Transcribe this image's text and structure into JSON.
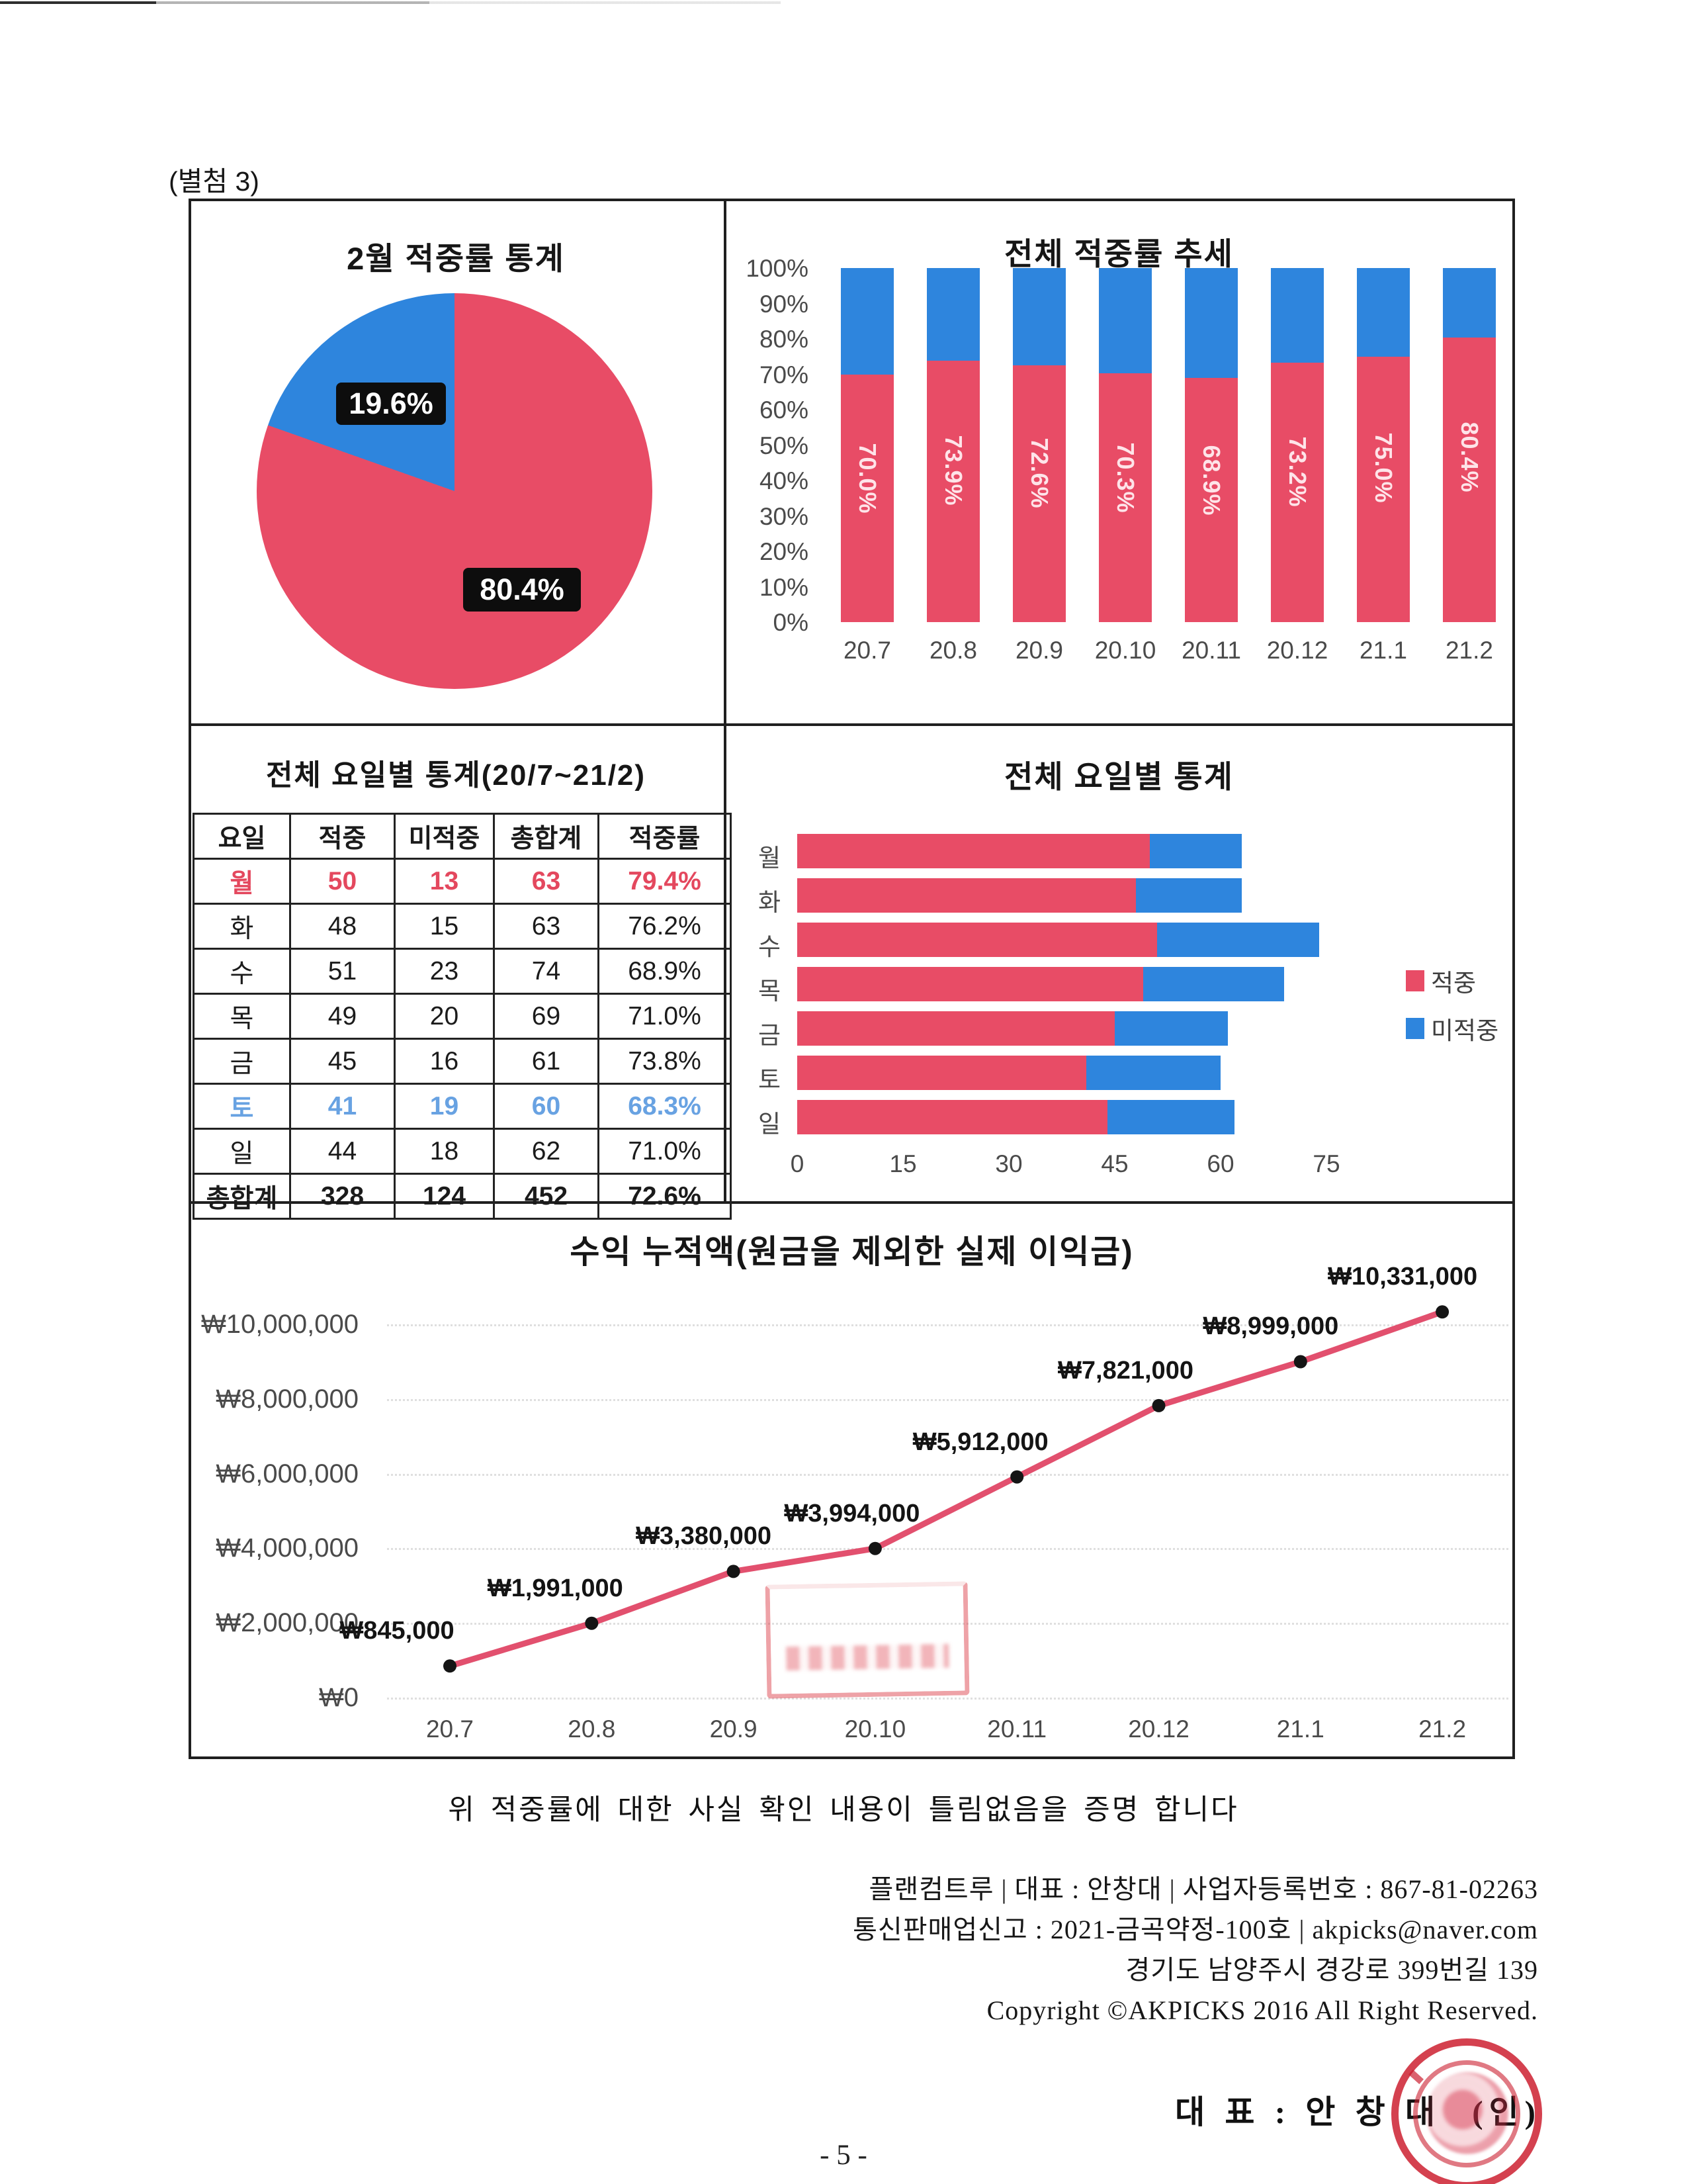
{
  "page": {
    "attachment_label": "(별첨 3)",
    "certify_text": "위 적중률에 대한 사실 확인 내용이 틀림없음을 증명 합니다",
    "footer_lines": [
      "플랜컴트루 | 대표 : 안창대 | 사업자등록번호 : 867-81-02263",
      "통신판매업신고 : 2021-금곡약정-100호 | akpicks@naver.com",
      "경기도 남양주시 경강로 399번길 139",
      "Copyright ©AKPICKS 2016 All Right Reserved."
    ],
    "signature_name": "대 표 : 안 창 대",
    "signature_seal_suffix": "(인)",
    "page_number": "- 5 -"
  },
  "colors": {
    "hit_red": "#e84c66",
    "miss_blue": "#2e85dd",
    "line_pink": "#e2506e",
    "marker_black": "#151515",
    "mon_red": "#e4485e",
    "sat_blue": "#68a2e2",
    "stamp_red": "#cc2030"
  },
  "chart_data": [
    {
      "id": "pie",
      "type": "pie",
      "title": "2월 적중률 통계",
      "slices": [
        {
          "name": "적중",
          "label": "80.4%",
          "value": 80.4,
          "color": "#e84c66"
        },
        {
          "name": "미적중",
          "label": "19.6%",
          "value": 19.6,
          "color": "#2e85dd"
        }
      ]
    },
    {
      "id": "trend",
      "type": "bar",
      "title": "전체 적중률 추세",
      "stacked": true,
      "categories": [
        "20.7",
        "20.8",
        "20.9",
        "20.10",
        "20.11",
        "20.12",
        "21.1",
        "21.2"
      ],
      "series": [
        {
          "name": "적중률",
          "values": [
            70.0,
            73.9,
            72.6,
            70.3,
            68.9,
            73.2,
            75.0,
            80.4
          ]
        },
        {
          "name": "미적중률",
          "values": [
            30.0,
            26.1,
            27.4,
            29.7,
            31.1,
            26.8,
            25.0,
            19.6
          ]
        }
      ],
      "bar_labels": [
        "70.0%",
        "73.9%",
        "72.6%",
        "70.3%",
        "68.9%",
        "73.2%",
        "75.0%",
        "80.4%"
      ],
      "y_ticks": [
        "100%",
        "90%",
        "80%",
        "70%",
        "60%",
        "50%",
        "40%",
        "30%",
        "20%",
        "10%",
        "0%"
      ],
      "ylim": [
        0,
        100
      ],
      "legend_position": "none"
    },
    {
      "id": "weekday_table",
      "type": "table",
      "title": "전체 요일별 통계(20/7~21/2)",
      "headers": [
        "요일",
        "적중",
        "미적중",
        "총합계",
        "적중률"
      ],
      "rows": [
        [
          "월",
          "50",
          "13",
          "63",
          "79.4%"
        ],
        [
          "화",
          "48",
          "15",
          "63",
          "76.2%"
        ],
        [
          "수",
          "51",
          "23",
          "74",
          "68.9%"
        ],
        [
          "목",
          "49",
          "20",
          "69",
          "71.0%"
        ],
        [
          "금",
          "45",
          "16",
          "61",
          "73.8%"
        ],
        [
          "토",
          "41",
          "19",
          "60",
          "68.3%"
        ],
        [
          "일",
          "44",
          "18",
          "62",
          "71.0%"
        ],
        [
          "총합계",
          "328",
          "124",
          "452",
          "72.6%"
        ]
      ],
      "row_styles": [
        "mon",
        "",
        "",
        "",
        "",
        "sat",
        "",
        "total"
      ]
    },
    {
      "id": "weekday_bars",
      "type": "bar-horizontal",
      "title": "전체 요일별 통계",
      "categories": [
        "월",
        "화",
        "수",
        "목",
        "금",
        "토",
        "일"
      ],
      "series": [
        {
          "name": "적중",
          "values": [
            50,
            48,
            51,
            49,
            45,
            41,
            44
          ]
        },
        {
          "name": "미적중",
          "values": [
            13,
            15,
            23,
            20,
            16,
            19,
            18
          ]
        }
      ],
      "x_ticks": [
        "0",
        "15",
        "30",
        "45",
        "60",
        "75"
      ],
      "xlim": [
        0,
        75
      ],
      "legend": [
        "적중",
        "미적중"
      ],
      "legend_position": "right"
    },
    {
      "id": "profit",
      "type": "line",
      "title": "수익 누적액(원금을 제외한 실제 이익금)",
      "categories": [
        "20.7",
        "20.8",
        "20.9",
        "20.10",
        "20.11",
        "20.12",
        "21.1",
        "21.2"
      ],
      "values": [
        845000,
        1991000,
        3380000,
        3994000,
        5912000,
        7821000,
        8999000,
        10331000
      ],
      "point_labels": [
        "₩845,000",
        "₩1,991,000",
        "₩3,380,000",
        "₩3,994,000",
        "₩5,912,000",
        "₩7,821,000",
        "₩8,999,000",
        "₩10,331,000"
      ],
      "y_ticks": [
        "₩10,000,000",
        "₩8,000,000",
        "₩6,000,000",
        "₩4,000,000",
        "₩2,000,000",
        "₩0"
      ],
      "y_tick_values": [
        10000000,
        8000000,
        6000000,
        4000000,
        2000000,
        0
      ],
      "ylim": [
        0,
        10000000
      ],
      "grid": "dotted"
    }
  ]
}
